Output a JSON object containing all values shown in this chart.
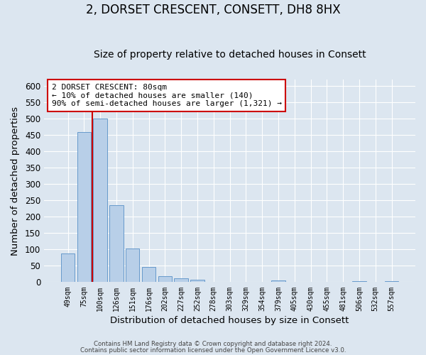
{
  "title": "2, DORSET CRESCENT, CONSETT, DH8 8HX",
  "subtitle": "Size of property relative to detached houses in Consett",
  "xlabel": "Distribution of detached houses by size in Consett",
  "ylabel": "Number of detached properties",
  "bar_labels": [
    "49sqm",
    "75sqm",
    "100sqm",
    "126sqm",
    "151sqm",
    "176sqm",
    "202sqm",
    "227sqm",
    "252sqm",
    "278sqm",
    "303sqm",
    "329sqm",
    "354sqm",
    "379sqm",
    "405sqm",
    "430sqm",
    "455sqm",
    "481sqm",
    "506sqm",
    "532sqm",
    "557sqm"
  ],
  "bar_values": [
    88,
    460,
    500,
    235,
    103,
    46,
    19,
    11,
    8,
    0,
    0,
    0,
    0,
    5,
    0,
    0,
    0,
    0,
    4,
    0,
    3
  ],
  "bar_color": "#b8cfe8",
  "bar_edge_color": "#6699cc",
  "ylim": [
    0,
    620
  ],
  "yticks": [
    0,
    50,
    100,
    150,
    200,
    250,
    300,
    350,
    400,
    450,
    500,
    550,
    600
  ],
  "vline_x": 1.5,
  "vline_color": "#cc0000",
  "annotation_title": "2 DORSET CRESCENT: 80sqm",
  "annotation_line1": "← 10% of detached houses are smaller (140)",
  "annotation_line2": "90% of semi-detached houses are larger (1,321) →",
  "annotation_box_color": "#ffffff",
  "annotation_box_edge": "#cc0000",
  "footer1": "Contains HM Land Registry data © Crown copyright and database right 2024.",
  "footer2": "Contains public sector information licensed under the Open Government Licence v3.0.",
  "background_color": "#dce6f0",
  "plot_background": "#dce6f0",
  "grid_color": "#ffffff",
  "title_fontsize": 12,
  "subtitle_fontsize": 10
}
